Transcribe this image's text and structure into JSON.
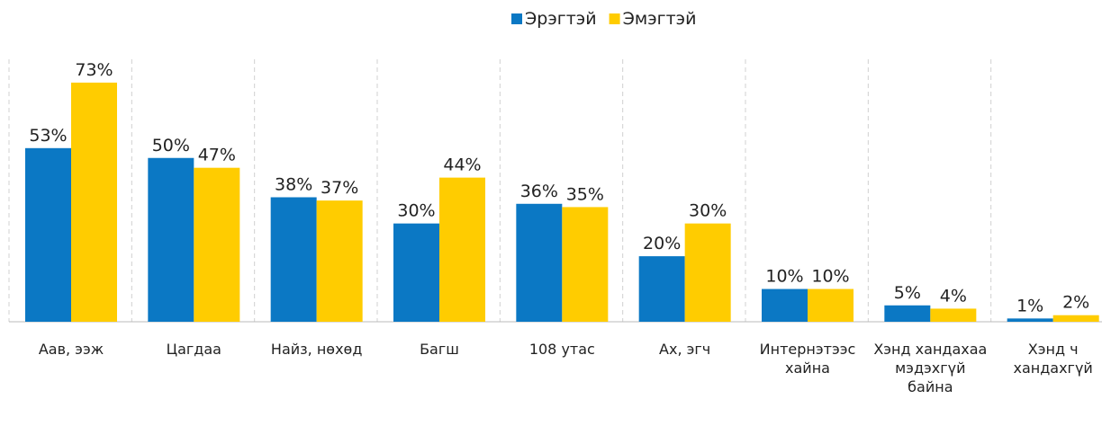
{
  "chart_data": {
    "type": "bar",
    "categories": [
      "Аав, ээж",
      "Цагдаа",
      "Найз, нөхөд",
      "Багш",
      "108 утас",
      "Ах, эгч",
      "Интернэтээс хайна",
      "Хэнд хандахаа мэдэхгүй байна",
      "Хэнд ч хандахгүй"
    ],
    "series": [
      {
        "name": "Эрэгтэй",
        "color": "#0b78c4",
        "values": [
          53,
          50,
          38,
          30,
          36,
          20,
          10,
          5,
          1
        ],
        "value_labels": [
          "53%",
          "50%",
          "38%",
          "30%",
          "36%",
          "20%",
          "10%",
          "5%",
          "1%"
        ]
      },
      {
        "name": "Эмэгтэй",
        "color": "#ffcc00",
        "values": [
          73,
          47,
          37,
          44,
          35,
          30,
          10,
          4,
          2
        ],
        "value_labels": [
          "73%",
          "47%",
          "37%",
          "44%",
          "35%",
          "30%",
          "10%",
          "4%",
          "2%"
        ]
      }
    ],
    "grid": true,
    "legend": "top"
  }
}
